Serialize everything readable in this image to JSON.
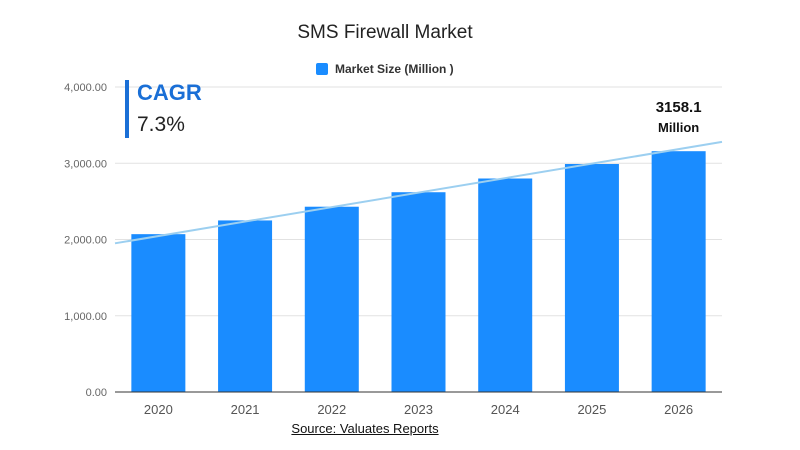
{
  "chart_data": {
    "type": "bar",
    "title": "SMS Firewall Market",
    "categories": [
      "2020",
      "2021",
      "2022",
      "2023",
      "2024",
      "2025",
      "2026"
    ],
    "series": [
      {
        "name": "Market Size (Million )",
        "values": [
          2070,
          2250,
          2430,
          2620,
          2800,
          2990,
          3158.1
        ]
      }
    ],
    "ylim": [
      0,
      4000
    ],
    "yticks": [
      "0.00",
      "1,000.00",
      "2,000.00",
      "3,000.00",
      "4,000.00"
    ],
    "ytick_values": [
      0,
      1000,
      2000,
      3000,
      4000
    ],
    "trendline": {
      "start_value": 1950,
      "end_value": 3280
    },
    "grid": true,
    "legend": "top",
    "bar_color": "#1a8cff",
    "annotation": {
      "value_text": "3158.1",
      "unit_text": "Million"
    },
    "cagr": {
      "label": "CAGR",
      "value": "7.3%"
    },
    "source": "Source: Valuates Reports"
  }
}
